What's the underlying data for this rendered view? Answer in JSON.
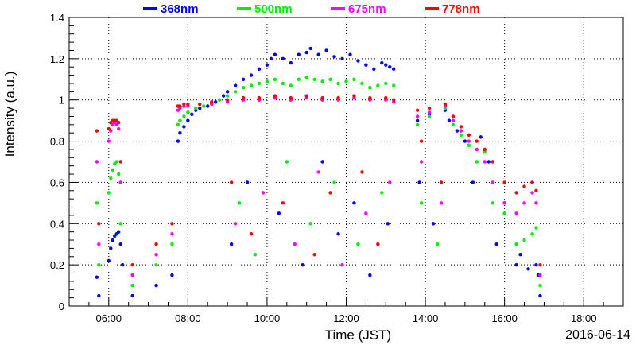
{
  "chart_data": {
    "type": "scatter",
    "title": "",
    "xlabel": "Time (JST)",
    "ylabel": "Intensity (a.u.)",
    "date_label": "2016-06-14",
    "x_unit": "hours JST",
    "xlim": [
      5.0,
      19.0
    ],
    "ylim": [
      0,
      1.4
    ],
    "x_ticks": [
      {
        "value": 6,
        "label": "06:00"
      },
      {
        "value": 8,
        "label": "08:00"
      },
      {
        "value": 10,
        "label": "10:00"
      },
      {
        "value": 12,
        "label": "12:00"
      },
      {
        "value": 14,
        "label": "14:00"
      },
      {
        "value": 16,
        "label": "16:00"
      },
      {
        "value": 18,
        "label": "18:00"
      }
    ],
    "y_ticks": [
      {
        "value": 0,
        "label": "0"
      },
      {
        "value": 0.2,
        "label": "0.2"
      },
      {
        "value": 0.4,
        "label": "0.4"
      },
      {
        "value": 0.6,
        "label": "0.6"
      },
      {
        "value": 0.8,
        "label": "0.8"
      },
      {
        "value": 1.0,
        "label": "1"
      },
      {
        "value": 1.2,
        "label": "1.2"
      },
      {
        "value": 1.4,
        "label": "1.4"
      }
    ],
    "grid": true,
    "legend_position": "top",
    "series": [
      {
        "name": "368nm",
        "color": "#0000ff",
        "points": [
          [
            5.7,
            0.14
          ],
          [
            5.75,
            0.05
          ],
          [
            6.0,
            0.22
          ],
          [
            6.05,
            0.28
          ],
          [
            6.1,
            0.32
          ],
          [
            6.15,
            0.34
          ],
          [
            6.2,
            0.35
          ],
          [
            6.25,
            0.36
          ],
          [
            6.3,
            0.3
          ],
          [
            6.35,
            0.2
          ],
          [
            6.6,
            0.05
          ],
          [
            7.2,
            0.1
          ],
          [
            7.6,
            0.15
          ],
          [
            7.75,
            0.8
          ],
          [
            7.8,
            0.84
          ],
          [
            7.9,
            0.87
          ],
          [
            8.0,
            0.9
          ],
          [
            8.1,
            0.93
          ],
          [
            8.2,
            0.95
          ],
          [
            8.3,
            0.96
          ],
          [
            8.5,
            0.97
          ],
          [
            8.7,
            0.99
          ],
          [
            8.9,
            1.02
          ],
          [
            9.0,
            1.04
          ],
          [
            9.2,
            1.07
          ],
          [
            9.4,
            1.1
          ],
          [
            9.6,
            1.12
          ],
          [
            9.8,
            1.15
          ],
          [
            10.0,
            1.17
          ],
          [
            10.1,
            1.2
          ],
          [
            10.2,
            1.22
          ],
          [
            10.4,
            1.2
          ],
          [
            10.6,
            1.18
          ],
          [
            10.8,
            1.22
          ],
          [
            11.0,
            1.23
          ],
          [
            11.1,
            1.25
          ],
          [
            11.3,
            1.22
          ],
          [
            11.5,
            1.24
          ],
          [
            11.7,
            1.21
          ],
          [
            11.9,
            1.2
          ],
          [
            12.1,
            1.22
          ],
          [
            12.3,
            1.19
          ],
          [
            12.5,
            1.17
          ],
          [
            12.7,
            1.15
          ],
          [
            12.9,
            1.18
          ],
          [
            13.0,
            1.17
          ],
          [
            13.1,
            1.16
          ],
          [
            13.2,
            1.15
          ],
          [
            9.1,
            0.3
          ],
          [
            9.5,
            0.6
          ],
          [
            10.3,
            0.45
          ],
          [
            10.9,
            0.2
          ],
          [
            11.4,
            0.7
          ],
          [
            11.8,
            0.35
          ],
          [
            12.2,
            0.5
          ],
          [
            12.6,
            0.15
          ],
          [
            13.05,
            0.4
          ],
          [
            13.8,
            0.9
          ],
          [
            13.85,
            0.6
          ],
          [
            14.1,
            0.93
          ],
          [
            14.2,
            0.4
          ],
          [
            14.5,
            0.95
          ],
          [
            14.6,
            0.9
          ],
          [
            14.8,
            0.85
          ],
          [
            15.0,
            0.8
          ],
          [
            15.2,
            0.6
          ],
          [
            15.4,
            0.82
          ],
          [
            15.6,
            0.7
          ],
          [
            15.8,
            0.3
          ],
          [
            16.0,
            0.5
          ],
          [
            16.3,
            0.2
          ],
          [
            16.4,
            0.25
          ],
          [
            16.6,
            0.18
          ],
          [
            16.8,
            0.2
          ],
          [
            16.85,
            0.15
          ],
          [
            16.9,
            0.05
          ]
        ]
      },
      {
        "name": "500nm",
        "color": "#00ee00",
        "points": [
          [
            5.7,
            0.5
          ],
          [
            5.75,
            0.2
          ],
          [
            6.0,
            0.55
          ],
          [
            6.05,
            0.62
          ],
          [
            6.1,
            0.66
          ],
          [
            6.15,
            0.69
          ],
          [
            6.2,
            0.7
          ],
          [
            6.25,
            0.64
          ],
          [
            6.3,
            0.4
          ],
          [
            6.6,
            0.1
          ],
          [
            7.2,
            0.2
          ],
          [
            7.6,
            0.3
          ],
          [
            7.75,
            0.88
          ],
          [
            7.8,
            0.9
          ],
          [
            7.9,
            0.92
          ],
          [
            8.0,
            0.94
          ],
          [
            8.2,
            0.96
          ],
          [
            8.4,
            0.97
          ],
          [
            8.6,
            0.98
          ],
          [
            8.8,
            1.0
          ],
          [
            9.0,
            1.02
          ],
          [
            9.2,
            1.04
          ],
          [
            9.4,
            1.06
          ],
          [
            9.6,
            1.07
          ],
          [
            9.8,
            1.08
          ],
          [
            10.0,
            1.09
          ],
          [
            10.2,
            1.1
          ],
          [
            10.4,
            1.08
          ],
          [
            10.6,
            1.07
          ],
          [
            10.8,
            1.1
          ],
          [
            11.0,
            1.11
          ],
          [
            11.2,
            1.1
          ],
          [
            11.4,
            1.09
          ],
          [
            11.6,
            1.1
          ],
          [
            11.8,
            1.08
          ],
          [
            12.0,
            1.09
          ],
          [
            12.2,
            1.1
          ],
          [
            12.4,
            1.08
          ],
          [
            12.6,
            1.06
          ],
          [
            12.8,
            1.07
          ],
          [
            13.0,
            1.08
          ],
          [
            13.2,
            1.07
          ],
          [
            9.3,
            0.5
          ],
          [
            9.7,
            0.25
          ],
          [
            10.5,
            0.7
          ],
          [
            11.1,
            0.4
          ],
          [
            11.7,
            0.6
          ],
          [
            12.3,
            0.3
          ],
          [
            12.9,
            0.55
          ],
          [
            13.8,
            0.88
          ],
          [
            13.9,
            0.5
          ],
          [
            14.1,
            0.92
          ],
          [
            14.3,
            0.3
          ],
          [
            14.5,
            0.96
          ],
          [
            14.7,
            0.88
          ],
          [
            14.9,
            0.83
          ],
          [
            15.1,
            0.78
          ],
          [
            15.3,
            0.7
          ],
          [
            15.5,
            0.75
          ],
          [
            15.7,
            0.5
          ],
          [
            16.0,
            0.45
          ],
          [
            16.3,
            0.3
          ],
          [
            16.5,
            0.32
          ],
          [
            16.7,
            0.35
          ],
          [
            16.8,
            0.38
          ],
          [
            16.9,
            0.1
          ]
        ]
      },
      {
        "name": "675nm",
        "color": "#ff00ff",
        "points": [
          [
            5.7,
            0.7
          ],
          [
            5.75,
            0.3
          ],
          [
            6.0,
            0.8
          ],
          [
            6.05,
            0.85
          ],
          [
            6.1,
            0.88
          ],
          [
            6.15,
            0.89
          ],
          [
            6.2,
            0.88
          ],
          [
            6.25,
            0.86
          ],
          [
            6.3,
            0.6
          ],
          [
            6.6,
            0.15
          ],
          [
            7.2,
            0.25
          ],
          [
            7.6,
            0.35
          ],
          [
            7.75,
            0.95
          ],
          [
            7.8,
            0.96
          ],
          [
            7.9,
            0.97
          ],
          [
            8.0,
            0.97
          ],
          [
            8.3,
            0.98
          ],
          [
            8.6,
            0.98
          ],
          [
            9.0,
            0.99
          ],
          [
            9.4,
            1.0
          ],
          [
            9.8,
            1.0
          ],
          [
            10.2,
            1.01
          ],
          [
            10.6,
            1.0
          ],
          [
            11.0,
            1.01
          ],
          [
            11.4,
            1.0
          ],
          [
            11.8,
            1.0
          ],
          [
            12.2,
            1.01
          ],
          [
            12.6,
            1.0
          ],
          [
            13.0,
            1.0
          ],
          [
            13.2,
            0.99
          ],
          [
            9.2,
            0.4
          ],
          [
            9.9,
            0.55
          ],
          [
            10.7,
            0.3
          ],
          [
            11.3,
            0.65
          ],
          [
            11.9,
            0.2
          ],
          [
            12.5,
            0.45
          ],
          [
            13.1,
            0.6
          ],
          [
            13.8,
            0.92
          ],
          [
            13.9,
            0.7
          ],
          [
            14.1,
            0.94
          ],
          [
            14.4,
            0.5
          ],
          [
            14.5,
            0.97
          ],
          [
            14.7,
            0.9
          ],
          [
            14.9,
            0.85
          ],
          [
            15.1,
            0.8
          ],
          [
            15.3,
            0.76
          ],
          [
            15.5,
            0.7
          ],
          [
            15.7,
            0.6
          ],
          [
            16.0,
            0.5
          ],
          [
            16.3,
            0.45
          ],
          [
            16.5,
            0.5
          ],
          [
            16.7,
            0.55
          ],
          [
            16.8,
            0.5
          ],
          [
            16.9,
            0.15
          ]
        ]
      },
      {
        "name": "778nm",
        "color": "#ff0000",
        "points": [
          [
            5.7,
            0.85
          ],
          [
            5.75,
            0.4
          ],
          [
            6.0,
            0.86
          ],
          [
            6.05,
            0.89
          ],
          [
            6.1,
            0.9
          ],
          [
            6.15,
            0.9
          ],
          [
            6.2,
            0.9
          ],
          [
            6.25,
            0.89
          ],
          [
            6.3,
            0.7
          ],
          [
            6.6,
            0.2
          ],
          [
            7.2,
            0.3
          ],
          [
            7.6,
            0.4
          ],
          [
            7.75,
            0.97
          ],
          [
            7.8,
            0.97
          ],
          [
            7.9,
            0.98
          ],
          [
            8.0,
            0.98
          ],
          [
            8.3,
            0.98
          ],
          [
            8.6,
            0.99
          ],
          [
            9.0,
            1.0
          ],
          [
            9.4,
            1.01
          ],
          [
            9.8,
            1.01
          ],
          [
            10.2,
            1.02
          ],
          [
            10.6,
            1.01
          ],
          [
            11.0,
            1.02
          ],
          [
            11.4,
            1.01
          ],
          [
            11.8,
            1.01
          ],
          [
            12.2,
            1.02
          ],
          [
            12.6,
            1.01
          ],
          [
            13.0,
            1.01
          ],
          [
            13.2,
            1.0
          ],
          [
            9.1,
            0.6
          ],
          [
            9.6,
            0.35
          ],
          [
            10.4,
            0.5
          ],
          [
            11.2,
            0.25
          ],
          [
            11.6,
            0.55
          ],
          [
            12.4,
            0.65
          ],
          [
            12.8,
            0.3
          ],
          [
            13.8,
            0.95
          ],
          [
            13.9,
            0.8
          ],
          [
            14.1,
            0.96
          ],
          [
            14.4,
            0.6
          ],
          [
            14.5,
            0.98
          ],
          [
            14.7,
            0.92
          ],
          [
            14.9,
            0.87
          ],
          [
            15.1,
            0.83
          ],
          [
            15.3,
            0.8
          ],
          [
            15.5,
            0.76
          ],
          [
            15.7,
            0.7
          ],
          [
            16.0,
            0.6
          ],
          [
            16.3,
            0.55
          ],
          [
            16.5,
            0.58
          ],
          [
            16.7,
            0.6
          ],
          [
            16.8,
            0.56
          ],
          [
            16.9,
            0.2
          ]
        ]
      }
    ]
  }
}
